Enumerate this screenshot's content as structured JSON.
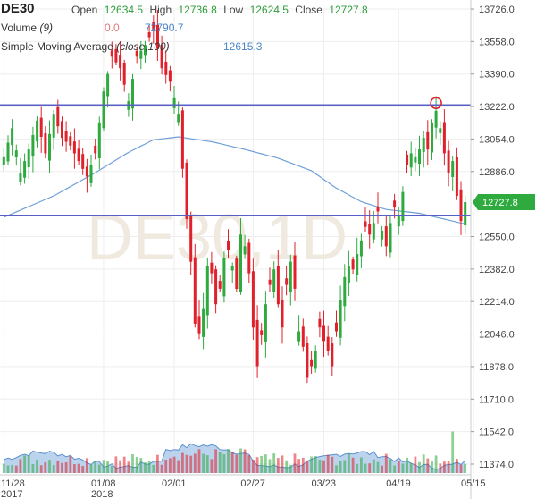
{
  "header": {
    "symbol": "DE30",
    "open_label": "Open",
    "open_value": "12634.5",
    "high_label": "High",
    "high_value": "12736.8",
    "low_label": "Low",
    "low_value": "12624.5",
    "close_label": "Close",
    "close_value": "12727.8",
    "volume_label": "Volume",
    "volume_param": "(9)",
    "volume_value_1": "0.0",
    "volume_value_2": "72790.7",
    "sma_label": "Simple Moving Average",
    "sma_param": "(close,100)",
    "sma_value": "12615.3"
  },
  "watermark": "DE30,1D",
  "colors": {
    "up": "#2eaa3e",
    "down": "#e0202a",
    "sma": "#6f9fd8",
    "trendline": "#5a5fc8",
    "volume_fill": "#bcd3ee",
    "volume_line": "#5b8fd0",
    "price_tag": "#2eaa3e",
    "marker": "#e0202a"
  },
  "chart_data": {
    "type": "candlestick",
    "y_axis_side": "right",
    "ylim": [
      11374,
      13726
    ],
    "y_ticks": [
      13726.0,
      13558.0,
      13390.0,
      13222.0,
      13054.0,
      12886.0,
      12550.0,
      12382.0,
      12214.0,
      12046.0,
      11878.0,
      11710.0,
      11542.0,
      11374.0
    ],
    "y_tick_labels": [
      "13726.0",
      "13558.0",
      "13390.0",
      "13222.0",
      "13054.0",
      "12886.0",
      "12550.0",
      "12382.0",
      "12214.0",
      "12046.0",
      "11878.0",
      "11710.0",
      "11542.0",
      "11374.0"
    ],
    "x_tick_labels": [
      {
        "label": "11/28",
        "sub": "2017",
        "bar": 0
      },
      {
        "label": "01/08",
        "sub": "2018",
        "bar": 24
      },
      {
        "label": "02/01",
        "sub": "",
        "bar": 41
      },
      {
        "label": "02/27",
        "sub": "",
        "bar": 60
      },
      {
        "label": "03/23",
        "sub": "",
        "bar": 77
      },
      {
        "label": "04/19",
        "sub": "",
        "bar": 95
      },
      {
        "label": "05/15",
        "sub": "",
        "bar": 113
      }
    ],
    "current_price": 12727.8,
    "current_price_label": "12727.8",
    "anchors": [
      [
        0,
        12960
      ],
      [
        2,
        13110
      ],
      [
        4,
        12880
      ],
      [
        6,
        13000
      ],
      [
        8,
        13150
      ],
      [
        10,
        12980
      ],
      [
        12,
        13180
      ],
      [
        14,
        13060
      ],
      [
        16,
        13020
      ],
      [
        18,
        12940
      ],
      [
        20,
        12860
      ],
      [
        22,
        12980
      ],
      [
        24,
        13300
      ],
      [
        26,
        13480
      ],
      [
        28,
        13420
      ],
      [
        30,
        13250
      ],
      [
        32,
        13480
      ],
      [
        34,
        13540
      ],
      [
        36,
        13620
      ],
      [
        38,
        13420
      ],
      [
        40,
        13350
      ],
      [
        42,
        13180
      ],
      [
        43,
        12900
      ],
      [
        44,
        12640
      ],
      [
        45,
        12420
      ],
      [
        46,
        12100
      ],
      [
        47,
        12050
      ],
      [
        48,
        12180
      ],
      [
        49,
        12400
      ],
      [
        50,
        12360
      ],
      [
        51,
        12200
      ],
      [
        52,
        12280
      ],
      [
        53,
        12440
      ],
      [
        54,
        12480
      ],
      [
        55,
        12400
      ],
      [
        56,
        12280
      ],
      [
        57,
        12560
      ],
      [
        58,
        12500
      ],
      [
        59,
        12360
      ],
      [
        60,
        12080
      ],
      [
        61,
        11880
      ],
      [
        62,
        12040
      ],
      [
        63,
        12200
      ],
      [
        64,
        12300
      ],
      [
        65,
        12380
      ],
      [
        66,
        12200
      ],
      [
        67,
        12080
      ],
      [
        68,
        12300
      ],
      [
        69,
        12420
      ],
      [
        70,
        12280
      ],
      [
        71,
        12060
      ],
      [
        72,
        11980
      ],
      [
        73,
        11820
      ],
      [
        74,
        11880
      ],
      [
        75,
        11960
      ],
      [
        76,
        12080
      ],
      [
        77,
        12010
      ],
      [
        78,
        11960
      ],
      [
        79,
        11880
      ],
      [
        80,
        12060
      ],
      [
        81,
        12220
      ],
      [
        82,
        12340
      ],
      [
        83,
        12400
      ],
      [
        84,
        12380
      ],
      [
        85,
        12460
      ],
      [
        86,
        12530
      ],
      [
        87,
        12600
      ],
      [
        88,
        12560
      ],
      [
        89,
        12620
      ],
      [
        90,
        12680
      ],
      [
        91,
        12580
      ],
      [
        92,
        12500
      ],
      [
        93,
        12620
      ],
      [
        94,
        12700
      ],
      [
        95,
        12660
      ],
      [
        96,
        12780
      ],
      [
        97,
        12920
      ],
      [
        98,
        12980
      ],
      [
        99,
        12960
      ],
      [
        100,
        13000
      ],
      [
        101,
        13060
      ],
      [
        102,
        13000
      ],
      [
        103,
        13140
      ],
      [
        104,
        13200
      ],
      [
        105,
        13110
      ],
      [
        106,
        12980
      ],
      [
        107,
        12880
      ],
      [
        108,
        12940
      ],
      [
        109,
        12760
      ],
      [
        110,
        12630
      ],
      [
        111,
        12728
      ]
    ],
    "annotations": [
      {
        "type": "horizontal_line",
        "value": 13230
      },
      {
        "type": "horizontal_line",
        "value": 12660
      },
      {
        "type": "circle_marker",
        "bar": 104,
        "value": 13240
      }
    ],
    "sma_points": [
      [
        0,
        12650
      ],
      [
        12,
        12760
      ],
      [
        22,
        12880
      ],
      [
        30,
        12985
      ],
      [
        36,
        13050
      ],
      [
        42,
        13065
      ],
      [
        50,
        13040
      ],
      [
        58,
        13000
      ],
      [
        66,
        12955
      ],
      [
        74,
        12890
      ],
      [
        80,
        12800
      ],
      [
        86,
        12730
      ],
      [
        92,
        12690
      ],
      [
        100,
        12670
      ],
      [
        106,
        12640
      ],
      [
        111,
        12615
      ]
    ]
  }
}
